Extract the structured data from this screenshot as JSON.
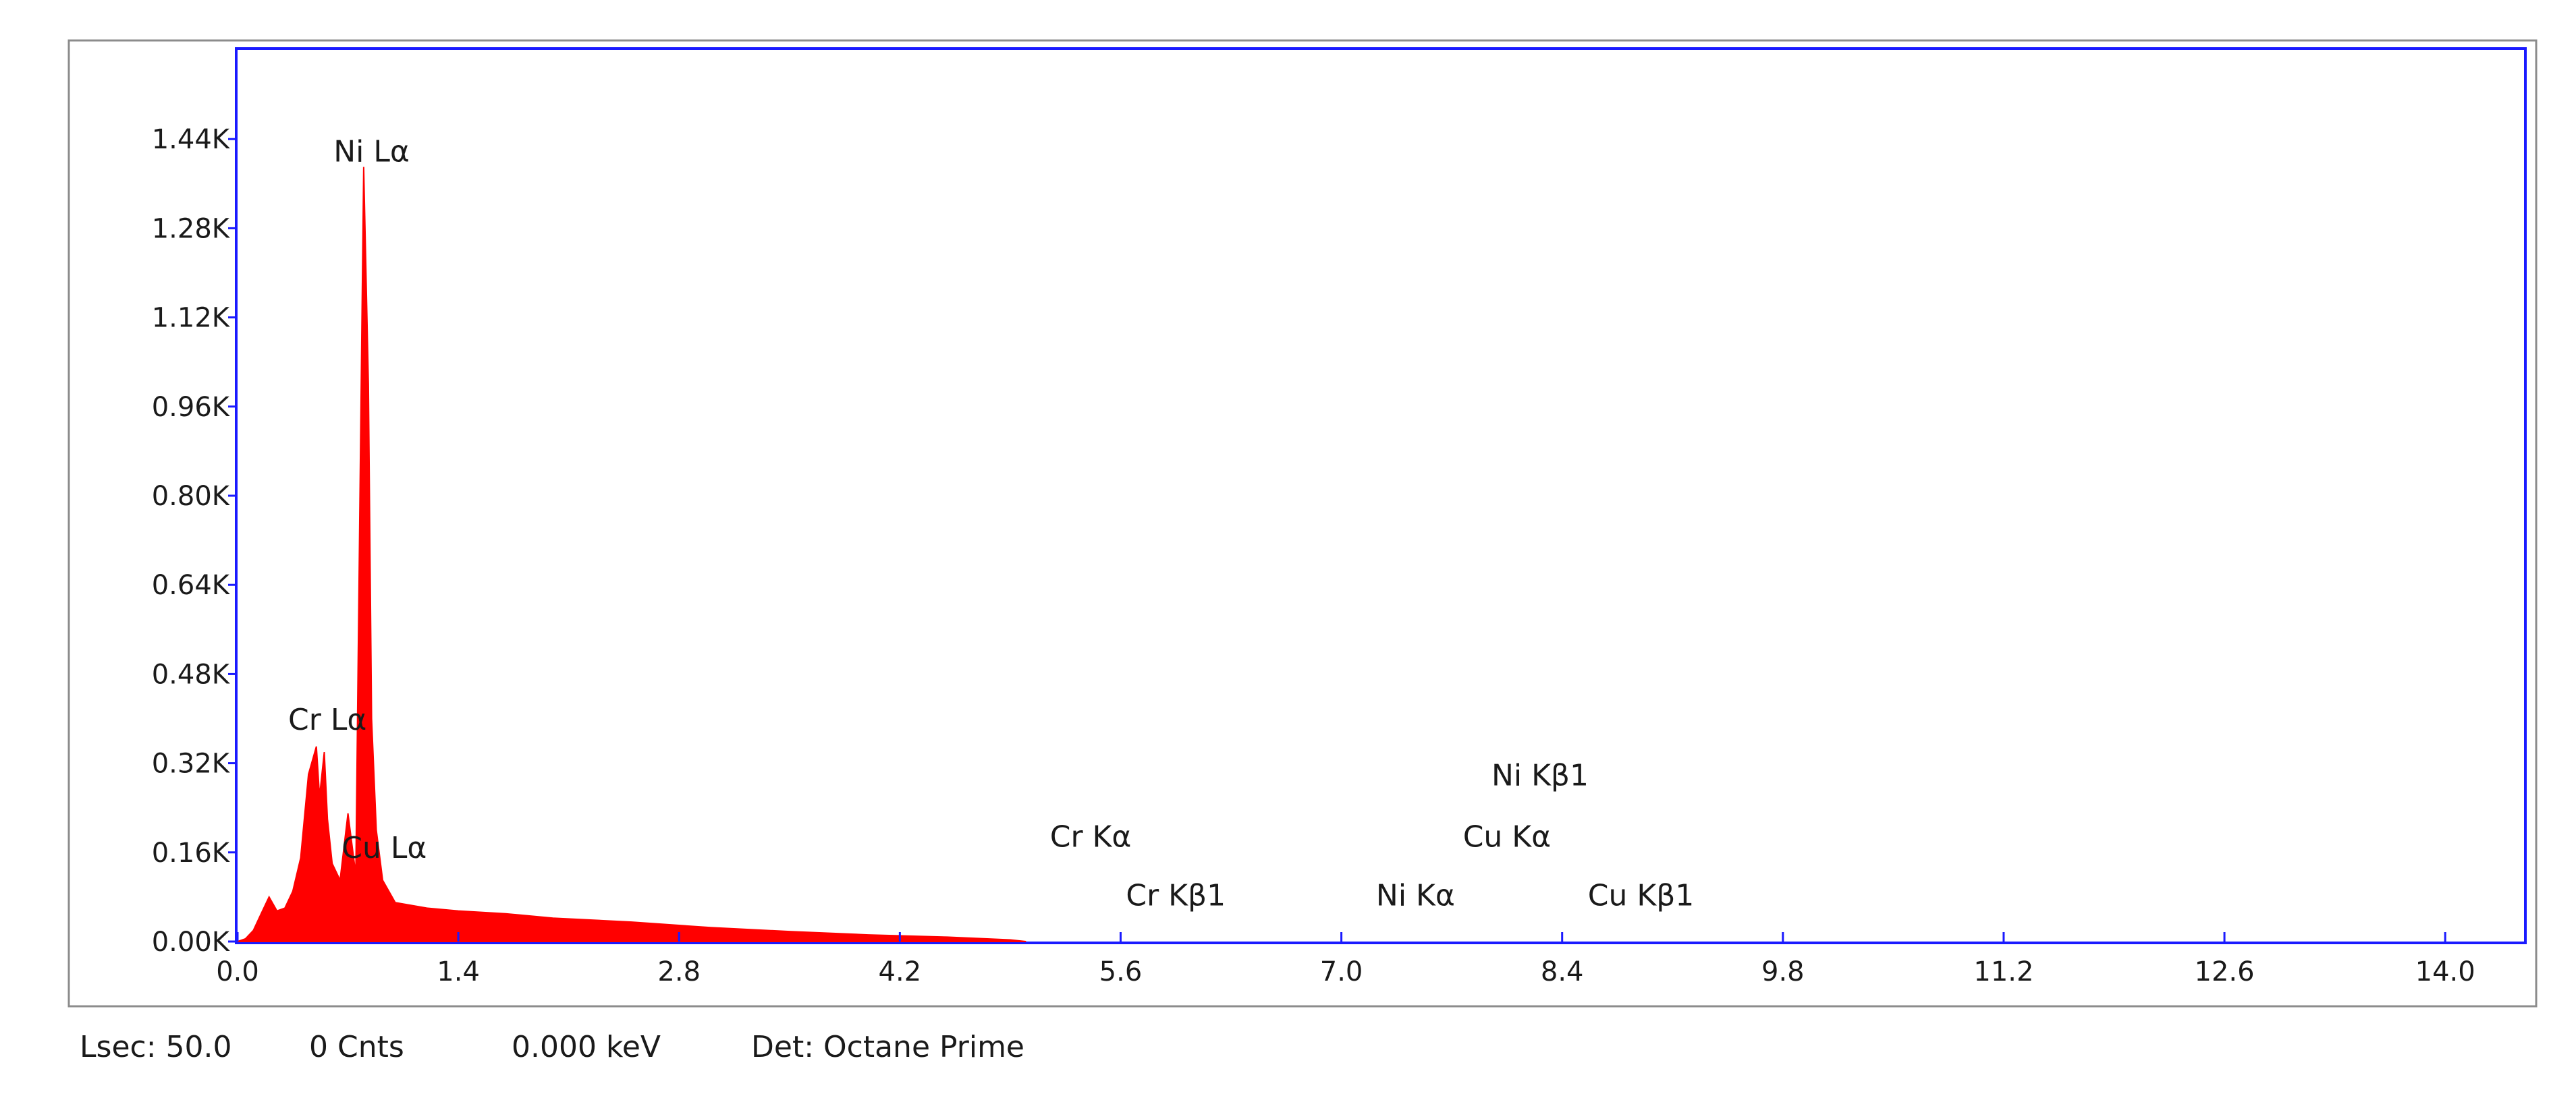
{
  "chart_data": {
    "type": "area",
    "title": "",
    "xlabel": "",
    "ylabel": "",
    "xlim": [
      0,
      14.5
    ],
    "ylim": [
      0,
      1600
    ],
    "x_ticks": [
      "0.0",
      "1.4",
      "2.8",
      "4.2",
      "5.6",
      "7.0",
      "8.4",
      "9.8",
      "11.2",
      "12.6",
      "14.0"
    ],
    "x_tick_values": [
      0.0,
      1.4,
      2.8,
      4.2,
      5.6,
      7.0,
      8.4,
      9.8,
      11.2,
      12.6,
      14.0
    ],
    "y_ticks": [
      "0.00K",
      "0.16K",
      "0.32K",
      "0.48K",
      "0.64K",
      "0.80K",
      "0.96K",
      "1.12K",
      "1.28K",
      "1.44K"
    ],
    "y_tick_values": [
      0,
      160,
      320,
      480,
      640,
      800,
      960,
      1120,
      1280,
      1440
    ],
    "grid": false,
    "series_color": "#ff0000",
    "frame_color": "#1a1aff",
    "spectrum": {
      "x": [
        0.0,
        0.05,
        0.1,
        0.15,
        0.2,
        0.25,
        0.3,
        0.35,
        0.4,
        0.45,
        0.5,
        0.52,
        0.55,
        0.57,
        0.6,
        0.65,
        0.7,
        0.75,
        0.78,
        0.8,
        0.83,
        0.85,
        0.88,
        0.92,
        1.0,
        1.2,
        1.4,
        1.7,
        2.0,
        2.5,
        3.0,
        3.5,
        4.0,
        4.5,
        4.9,
        5.0
      ],
      "counts": [
        0,
        5,
        20,
        50,
        80,
        55,
        60,
        90,
        150,
        300,
        350,
        260,
        340,
        220,
        140,
        110,
        230,
        120,
        900,
        1390,
        1000,
        400,
        200,
        110,
        70,
        60,
        55,
        50,
        42,
        35,
        25,
        18,
        12,
        8,
        3,
        0
      ]
    },
    "peak_labels": [
      {
        "text": "Ni Lα",
        "x": 0.85,
        "y": 1400
      },
      {
        "text": "Cr Lα",
        "x": 0.57,
        "y": 380
      },
      {
        "text": "Cu Lα",
        "x": 0.93,
        "y": 150
      },
      {
        "text": "Cr Kα",
        "x": 5.41,
        "y": 170
      },
      {
        "text": "Cr Kβ1",
        "x": 5.95,
        "y": 65
      },
      {
        "text": "Ni Kβ1",
        "x": 8.26,
        "y": 280
      },
      {
        "text": "Cu Kα",
        "x": 8.05,
        "y": 170
      },
      {
        "text": "Ni Kα",
        "x": 7.47,
        "y": 65
      },
      {
        "text": "Cu Kβ1",
        "x": 8.9,
        "y": 65
      }
    ]
  },
  "status": {
    "lsec": "Lsec: 50.0",
    "cnts": "0 Cnts",
    "kev": "0.000 keV",
    "det": "Det: Octane Prime"
  }
}
